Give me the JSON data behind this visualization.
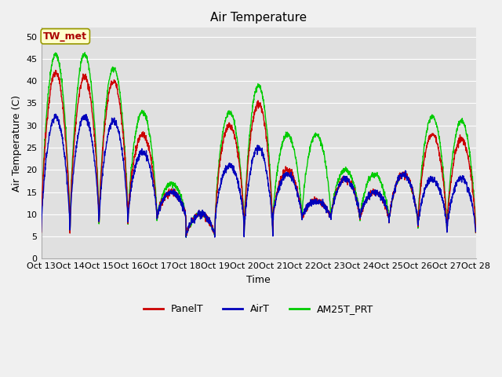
{
  "title": "Air Temperature",
  "ylabel": "Air Temperature (C)",
  "xlabel": "Time",
  "annotation": "TW_met",
  "ylim": [
    0,
    52
  ],
  "yticks": [
    0,
    5,
    10,
    15,
    20,
    25,
    30,
    35,
    40,
    45,
    50
  ],
  "xtick_labels": [
    "Oct 13",
    "Oct 14",
    "Oct 15",
    "Oct 16",
    "Oct 17",
    "Oct 18",
    "Oct 19",
    "Oct 20",
    "Oct 21",
    "Oct 22",
    "Oct 23",
    "Oct 24",
    "Oct 25",
    "Oct 26",
    "Oct 27",
    "Oct 28"
  ],
  "legend_entries": [
    "PanelT",
    "AirT",
    "AM25T_PRT"
  ],
  "line_colors": [
    "#cc0000",
    "#0000bb",
    "#00cc00"
  ],
  "fig_bg_color": "#f0f0f0",
  "plot_bg_color": "#e0e0e0",
  "grid_color": "#ffffff",
  "annotation_box_color": "#ffffcc",
  "annotation_text_color": "#aa0000",
  "annotation_box_edge": "#999900",
  "title_fontsize": 11,
  "label_fontsize": 9,
  "tick_fontsize": 8,
  "legend_fontsize": 9,
  "linewidth": 1.0,
  "n_days": 15,
  "peaks_panel": [
    42,
    41,
    40,
    28,
    15,
    10,
    30,
    35,
    20,
    13,
    18,
    15,
    19,
    28,
    27
  ],
  "mins_panel": [
    6,
    8,
    8,
    9,
    9,
    5,
    8,
    5,
    9,
    9,
    9,
    9,
    8,
    7,
    6
  ],
  "peaks_air": [
    32,
    32,
    31,
    24,
    15,
    10,
    21,
    25,
    19,
    13,
    18,
    15,
    19,
    18,
    18
  ],
  "peaks_am25": [
    46,
    46,
    43,
    33,
    17,
    10,
    33,
    39,
    28,
    28,
    20,
    19,
    19,
    32,
    31
  ]
}
